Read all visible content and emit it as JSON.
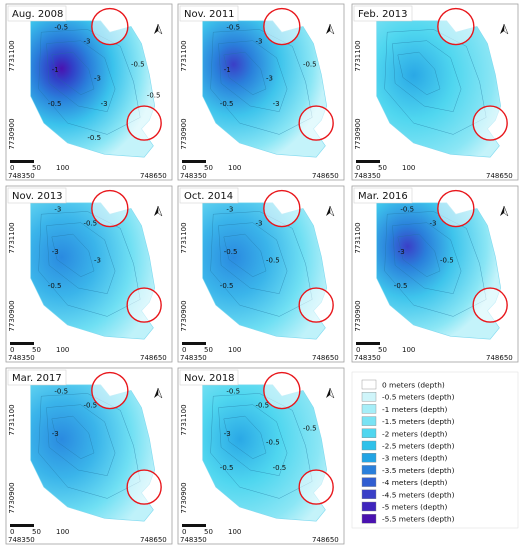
{
  "panels": [
    {
      "title": "Aug. 2008",
      "x_left": "748350",
      "x_right": "748650",
      "y_top": "7731100",
      "y_bottom": "7730900",
      "scale_labels": [
        "0",
        "50",
        "100"
      ],
      "contours": [
        "-0.5",
        "-3",
        "-1",
        "-3",
        "-0.5",
        "-3",
        "-0.5",
        "-0.5",
        "-0.5"
      ]
    },
    {
      "title": "Nov. 2011",
      "x_left": "748350",
      "x_right": "748650",
      "y_top": "7731100",
      "y_bottom": "7730900",
      "scale_labels": [
        "0",
        "50",
        "100"
      ],
      "contours": [
        "-0.5",
        "-3",
        "-1",
        "-3",
        "-0.5",
        "-3",
        "-0.5"
      ]
    },
    {
      "title": "Feb. 2013",
      "x_left": "748350",
      "x_right": "748650",
      "y_top": "7731100",
      "y_bottom": "7730900",
      "scale_labels": [
        "0",
        "50",
        "100"
      ],
      "contours": []
    },
    {
      "title": "Nov. 2013",
      "x_left": "748350",
      "x_right": "748650",
      "y_top": "7731100",
      "y_bottom": "7730900",
      "scale_labels": [
        "0",
        "50",
        "100"
      ],
      "contours": [
        "-3",
        "-0.5",
        "-3",
        "-3",
        "-0.5"
      ]
    },
    {
      "title": "Oct. 2014",
      "x_left": "748350",
      "x_right": "748650",
      "y_top": "7731100",
      "y_bottom": "7730900",
      "scale_labels": [
        "0",
        "50",
        "100"
      ],
      "contours": [
        "-3",
        "-3",
        "-0.5",
        "-0.5",
        "-0.5"
      ]
    },
    {
      "title": "Mar. 2016",
      "x_left": "748350",
      "x_right": "748650",
      "y_top": "7731100",
      "y_bottom": "7730900",
      "scale_labels": [
        "0",
        "50",
        "100"
      ],
      "contours": [
        "-0.5",
        "-3",
        "-3",
        "-0.5",
        "-0.5"
      ]
    },
    {
      "title": "Mar. 2017",
      "x_left": "748350",
      "x_right": "748650",
      "y_top": "7731100",
      "y_bottom": "7730900",
      "scale_labels": [
        "0",
        "50",
        "100"
      ],
      "contours": [
        "-0.5",
        "-0.5",
        "-3"
      ]
    },
    {
      "title": "Nov. 2018",
      "x_left": "748350",
      "x_right": "748650",
      "y_top": "7731100",
      "y_bottom": "7730900",
      "scale_labels": [
        "0",
        "50",
        "100"
      ],
      "contours": [
        "-0.5",
        "-0.5",
        "-3",
        "-0.5",
        "-0.5",
        "-0.5",
        "-0.5"
      ]
    }
  ],
  "legend": [
    {
      "label": "0 meters (depth)",
      "color": "#ffffff"
    },
    {
      "label": "-0.5 meters (depth)",
      "color": "#cff5fa"
    },
    {
      "label": "-1 meters (depth)",
      "color": "#a6eef8"
    },
    {
      "label": "-1.5 meters (depth)",
      "color": "#79e3f4"
    },
    {
      "label": "-2 meters (depth)",
      "color": "#4fd6ef"
    },
    {
      "label": "-2.5 meters (depth)",
      "color": "#2fc1ea"
    },
    {
      "label": "-3 meters (depth)",
      "color": "#23a4e4"
    },
    {
      "label": "-3.5 meters (depth)",
      "color": "#2a7fdb"
    },
    {
      "label": "-4 meters (depth)",
      "color": "#315ed1"
    },
    {
      "label": "-4.5 meters (depth)",
      "color": "#3a3fc7"
    },
    {
      "label": "-5 meters (depth)",
      "color": "#3f25bd"
    },
    {
      "label": "-5.5 meters (depth)",
      "color": "#4a12b0"
    }
  ],
  "colors": {
    "shallow": "#bdf3fa",
    "mid": "#6fe0f3",
    "deep": "#2aa8e6",
    "deeper": "#2f6fd8",
    "deepest": "#4a12b0",
    "circle": "#e8161b",
    "frame": "#a0a0a0"
  }
}
